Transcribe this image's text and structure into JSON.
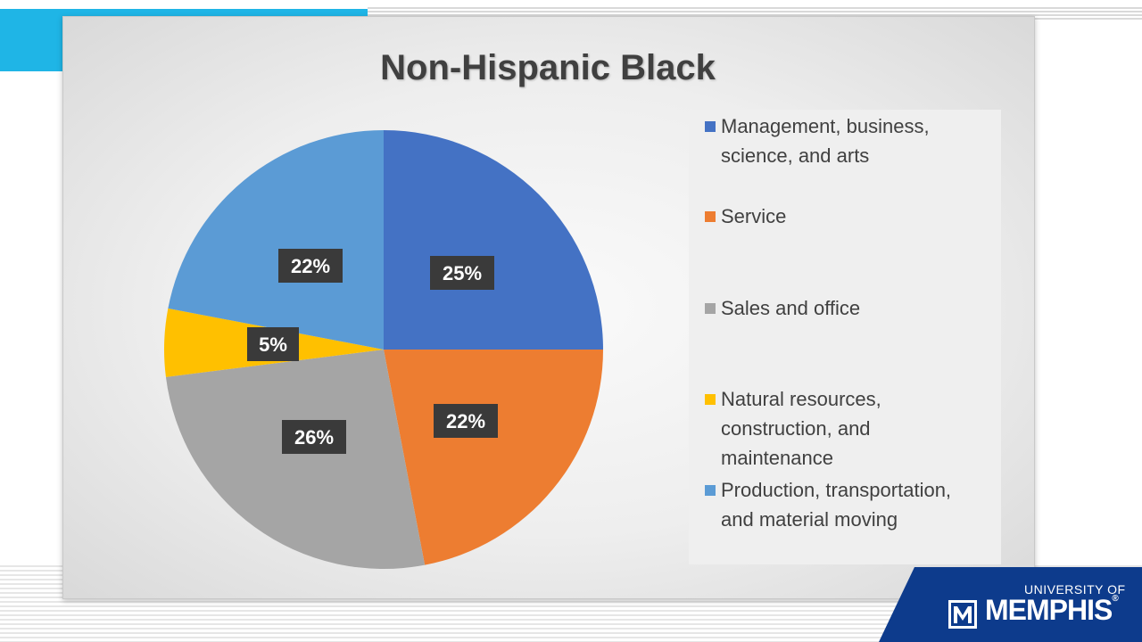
{
  "chart_data": {
    "type": "pie",
    "title": "Non-Hispanic Black",
    "categories": [
      "Management, business, science, and arts",
      "Service",
      "Sales and office",
      "Natural resources, construction, and maintenance",
      "Production, transportation, and material moving"
    ],
    "values": [
      25,
      22,
      26,
      5,
      22
    ],
    "data_labels": [
      "25%",
      "22%",
      "26%",
      "5%",
      "22%"
    ],
    "colors": [
      "#4472c4",
      "#ed7d31",
      "#a5a5a5",
      "#ffc000",
      "#5b9bd5"
    ],
    "legend": {
      "placement": "right",
      "entries": [
        {
          "label": "Management, business,",
          "label2": "science, and arts",
          "label3": "",
          "color": "#4472c4"
        },
        {
          "label": "Service",
          "label2": "",
          "label3": "",
          "color": "#ed7d31"
        },
        {
          "label": "Sales and office",
          "label2": "",
          "label3": "",
          "color": "#a5a5a5"
        },
        {
          "label": "Natural resources,",
          "label2": "construction, and",
          "label3": "maintenance",
          "color": "#ffc000"
        },
        {
          "label": "Production, transportation,",
          "label2": "and material moving",
          "label3": "",
          "color": "#5b9bd5"
        }
      ]
    }
  },
  "branding": {
    "logo_top": "UNIVERSITY OF",
    "logo_main": "MEMPHIS",
    "logo_mark": "M",
    "band_color": "#0d3b8c",
    "accent_color": "#1fb5e6"
  }
}
